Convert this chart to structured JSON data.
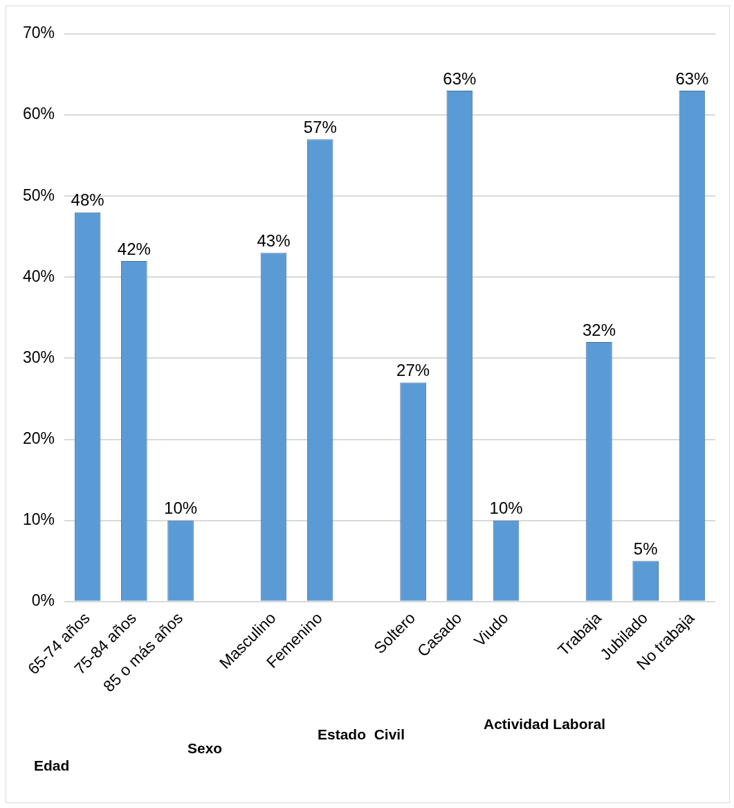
{
  "chart_data": {
    "type": "bar",
    "categories": [
      "65-74 años",
      "75-84 años",
      "85 o más años",
      null,
      "Masculino",
      "Femenino",
      null,
      "Soltero",
      "Casado",
      "Viudo",
      null,
      "Trabaja",
      "Jubilado",
      "No trabaja"
    ],
    "values": [
      48,
      42,
      10,
      null,
      43,
      57,
      null,
      27,
      63,
      10,
      null,
      32,
      5,
      63
    ],
    "value_labels": [
      "48%",
      "42%",
      "10%",
      null,
      "43%",
      "57%",
      null,
      "27%",
      "63%",
      "10%",
      null,
      "32%",
      "5%",
      "63%"
    ],
    "color": "#5b9bd5",
    "ylim": [
      0,
      70
    ],
    "yticks": [
      {
        "value": 0,
        "label": "0%"
      },
      {
        "value": 10,
        "label": "10%"
      },
      {
        "value": 20,
        "label": "20%"
      },
      {
        "value": 30,
        "label": "30%"
      },
      {
        "value": 40,
        "label": "40%"
      },
      {
        "value": 50,
        "label": "50%"
      },
      {
        "value": 60,
        "label": "60%"
      },
      {
        "value": 70,
        "label": "70%"
      }
    ],
    "grid": "y",
    "legend": false,
    "annotations": [
      "Edad",
      "Sexo",
      "Estado  Civil",
      "Actividad Laboral"
    ]
  }
}
